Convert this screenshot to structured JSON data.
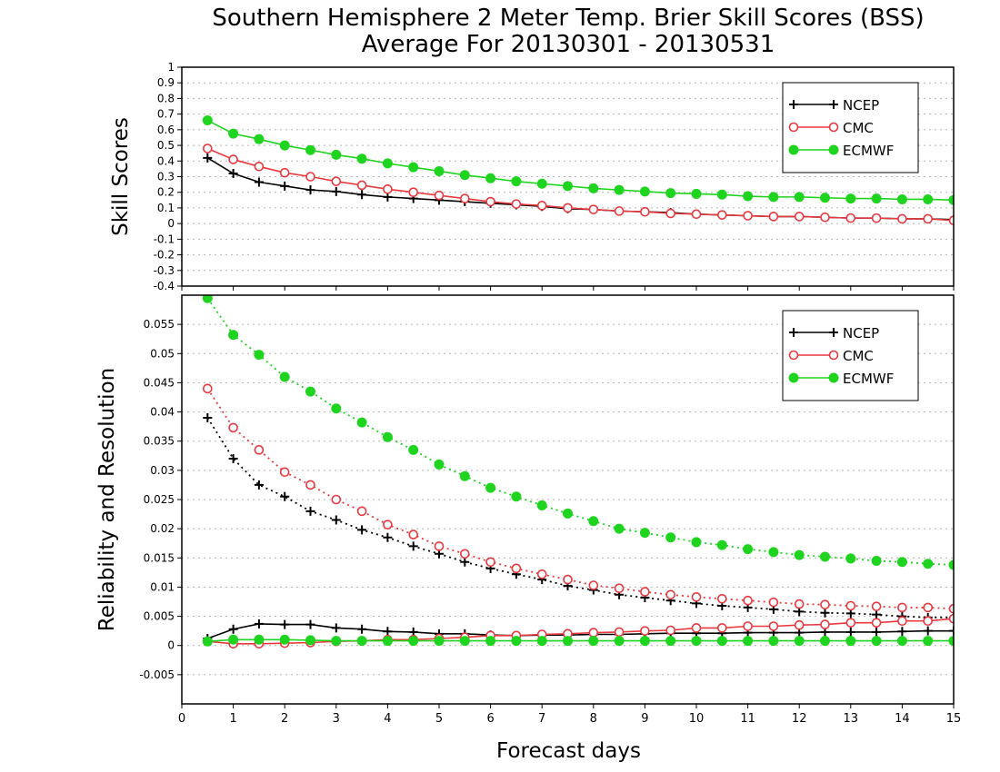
{
  "title": "Southern Hemisphere 2 Meter Temp. Brier Skill Scores (BSS)",
  "subtitle": "Average For 20130301 - 20130531",
  "colors": {
    "NCEP": "#000000",
    "CMC": "#e8393f",
    "ECMWF": "#1ed41e",
    "grid": "#b5b5b5"
  },
  "chart_data": [
    {
      "type": "line",
      "panel": "top",
      "ylabel": "Skill Scores",
      "xlabel": "",
      "xlim": [
        0,
        15
      ],
      "ylim": [
        -0.4,
        1
      ],
      "yticks": [
        "-0.4",
        "-0.3",
        "-0.2",
        "-0.1",
        "0",
        "0.1",
        "0.2",
        "0.3",
        "0.4",
        "0.5",
        "0.6",
        "0.7",
        "0.8",
        "0.9",
        "1"
      ],
      "grid": true,
      "legend": "top-right",
      "x": [
        0.5,
        1,
        1.5,
        2,
        2.5,
        3,
        3.5,
        4,
        4.5,
        5,
        5.5,
        6,
        6.5,
        7,
        7.5,
        8,
        8.5,
        9,
        9.5,
        10,
        10.5,
        11,
        11.5,
        12,
        12.5,
        13,
        13.5,
        14,
        14.5,
        15
      ],
      "series": [
        {
          "name": "NCEP",
          "marker": "plus",
          "style": "solid",
          "values": [
            0.42,
            0.32,
            0.265,
            0.24,
            0.215,
            0.205,
            0.185,
            0.17,
            0.16,
            0.15,
            0.14,
            0.13,
            0.12,
            0.11,
            0.095,
            0.09,
            0.08,
            0.075,
            0.07,
            0.06,
            0.055,
            0.05,
            0.045,
            0.045,
            0.04,
            0.035,
            0.035,
            0.03,
            0.03,
            0.025
          ]
        },
        {
          "name": "CMC",
          "marker": "circle-open",
          "style": "solid",
          "values": [
            0.48,
            0.41,
            0.365,
            0.325,
            0.3,
            0.27,
            0.245,
            0.22,
            0.2,
            0.18,
            0.16,
            0.14,
            0.125,
            0.115,
            0.1,
            0.09,
            0.08,
            0.075,
            0.065,
            0.06,
            0.055,
            0.05,
            0.045,
            0.045,
            0.04,
            0.035,
            0.035,
            0.03,
            0.03,
            0.02
          ]
        },
        {
          "name": "ECMWF",
          "marker": "circle-filled",
          "style": "solid",
          "values": [
            0.66,
            0.575,
            0.54,
            0.5,
            0.47,
            0.44,
            0.415,
            0.385,
            0.36,
            0.335,
            0.31,
            0.29,
            0.27,
            0.255,
            0.24,
            0.225,
            0.215,
            0.205,
            0.195,
            0.19,
            0.185,
            0.175,
            0.17,
            0.17,
            0.165,
            0.16,
            0.16,
            0.155,
            0.155,
            0.15
          ]
        }
      ]
    },
    {
      "type": "line",
      "panel": "bottom",
      "ylabel": "Reliability and Resolution",
      "xlabel": "Forecast days",
      "xlim": [
        0,
        15
      ],
      "xticks": [
        "0",
        "1",
        "2",
        "3",
        "4",
        "5",
        "6",
        "7",
        "8",
        "9",
        "10",
        "11",
        "12",
        "13",
        "14",
        "15"
      ],
      "ylim": [
        -0.01,
        0.06
      ],
      "yticks": [
        "-0.005",
        "0",
        "0.005",
        "0.01",
        "0.015",
        "0.02",
        "0.025",
        "0.03",
        "0.035",
        "0.04",
        "0.045",
        "0.05",
        "0.055"
      ],
      "grid": true,
      "legend": "top-right",
      "x": [
        0.5,
        1,
        1.5,
        2,
        2.5,
        3,
        3.5,
        4,
        4.5,
        5,
        5.5,
        6,
        6.5,
        7,
        7.5,
        8,
        8.5,
        9,
        9.5,
        10,
        10.5,
        11,
        11.5,
        12,
        12.5,
        13,
        13.5,
        14,
        14.5,
        15
      ],
      "series": [
        {
          "name": "NCEP",
          "marker": "plus",
          "style": "dotted",
          "values": [
            0.039,
            0.032,
            0.0275,
            0.0255,
            0.023,
            0.0215,
            0.0198,
            0.0185,
            0.017,
            0.0157,
            0.0143,
            0.0132,
            0.0122,
            0.0113,
            0.0102,
            0.0095,
            0.0087,
            0.0082,
            0.0077,
            0.0072,
            0.0068,
            0.0065,
            0.0062,
            0.0058,
            0.0056,
            0.0055,
            0.0053,
            0.005,
            0.0048,
            0.0048
          ]
        },
        {
          "name": "CMC",
          "marker": "circle-open",
          "style": "dotted",
          "values": [
            0.044,
            0.0373,
            0.0335,
            0.0297,
            0.0275,
            0.025,
            0.023,
            0.0207,
            0.019,
            0.017,
            0.0157,
            0.0143,
            0.0132,
            0.0122,
            0.0113,
            0.0103,
            0.0098,
            0.0092,
            0.0087,
            0.0083,
            0.008,
            0.0077,
            0.0074,
            0.0071,
            0.007,
            0.0068,
            0.0067,
            0.0065,
            0.0065,
            0.0063
          ]
        },
        {
          "name": "ECMWF",
          "marker": "circle-filled",
          "style": "dotted",
          "values": [
            0.0595,
            0.0532,
            0.0498,
            0.046,
            0.0435,
            0.0406,
            0.0382,
            0.0357,
            0.0335,
            0.031,
            0.029,
            0.027,
            0.0255,
            0.024,
            0.0226,
            0.0213,
            0.02,
            0.0193,
            0.0185,
            0.0177,
            0.0172,
            0.0165,
            0.016,
            0.0155,
            0.0152,
            0.0149,
            0.0145,
            0.0143,
            0.014,
            0.0138
          ]
        },
        {
          "name": "NCEP",
          "marker": "plus",
          "style": "solid",
          "values": [
            0.0012,
            0.0028,
            0.0037,
            0.0036,
            0.0036,
            0.003,
            0.0028,
            0.0024,
            0.0023,
            0.002,
            0.002,
            0.0018,
            0.0017,
            0.0018,
            0.0018,
            0.0019,
            0.0019,
            0.002,
            0.0021,
            0.0021,
            0.0021,
            0.0022,
            0.0022,
            0.0022,
            0.0023,
            0.0023,
            0.0023,
            0.0024,
            0.0025,
            0.0025
          ]
        },
        {
          "name": "CMC",
          "marker": "circle-open",
          "style": "solid",
          "values": [
            0.0007,
            0.0003,
            0.0003,
            0.0004,
            0.0005,
            0.0007,
            0.0008,
            0.001,
            0.001,
            0.0012,
            0.0014,
            0.0017,
            0.0017,
            0.0019,
            0.002,
            0.0022,
            0.0023,
            0.0025,
            0.0026,
            0.003,
            0.003,
            0.0033,
            0.0033,
            0.0035,
            0.0036,
            0.0039,
            0.0039,
            0.0042,
            0.0042,
            0.0046
          ]
        },
        {
          "name": "ECMWF",
          "marker": "circle-filled",
          "style": "solid",
          "values": [
            0.0007,
            0.001,
            0.001,
            0.001,
            0.0009,
            0.0008,
            0.0008,
            0.0008,
            0.0008,
            0.0008,
            0.0008,
            0.0008,
            0.0008,
            0.0008,
            0.0008,
            0.0008,
            0.0008,
            0.0008,
            0.0008,
            0.0008,
            0.0008,
            0.0008,
            0.0008,
            0.0008,
            0.0008,
            0.0008,
            0.0008,
            0.0008,
            0.0008,
            0.0008
          ]
        }
      ]
    }
  ]
}
